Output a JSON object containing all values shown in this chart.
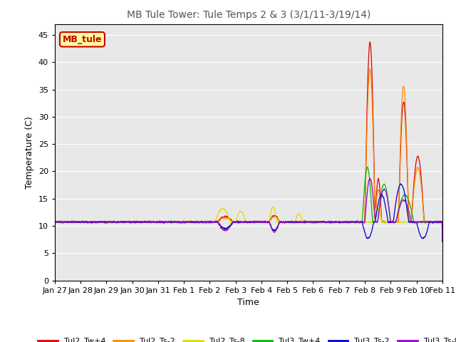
{
  "title": "MB Tule Tower: Tule Temps 2 & 3 (3/1/11-3/19/14)",
  "xlabel": "Time",
  "ylabel": "Temperature (C)",
  "ylim": [
    0,
    47
  ],
  "yticks": [
    0,
    5,
    10,
    15,
    20,
    25,
    30,
    35,
    40,
    45
  ],
  "background_color": "#e8e8e8",
  "grid_color": "#ffffff",
  "series": {
    "Tul2_Tw+4": {
      "color": "#dd0000"
    },
    "Tul2_Ts-2": {
      "color": "#ff8800"
    },
    "Tul2_Ts-8": {
      "color": "#dddd00"
    },
    "Tul3_Tw+4": {
      "color": "#00bb00"
    },
    "Tul3_Ts-2": {
      "color": "#0000cc"
    },
    "Tul3_Ts-8": {
      "color": "#9900cc"
    }
  },
  "annotation_box": {
    "text": "MB_tule",
    "color": "#cc0000",
    "bg": "#ffff99"
  },
  "x_tick_labels": [
    "Jan 27",
    "Jan 28",
    "Jan 29",
    "Jan 30",
    "Jan 31",
    "Feb 1",
    "Feb 2",
    "Feb 3",
    "Feb 4",
    "Feb 5",
    "Feb 6",
    "Feb 7",
    "Feb 8",
    "Feb 9",
    "Feb 10",
    "Feb 11"
  ],
  "n_days": 15,
  "n_points": 2000
}
